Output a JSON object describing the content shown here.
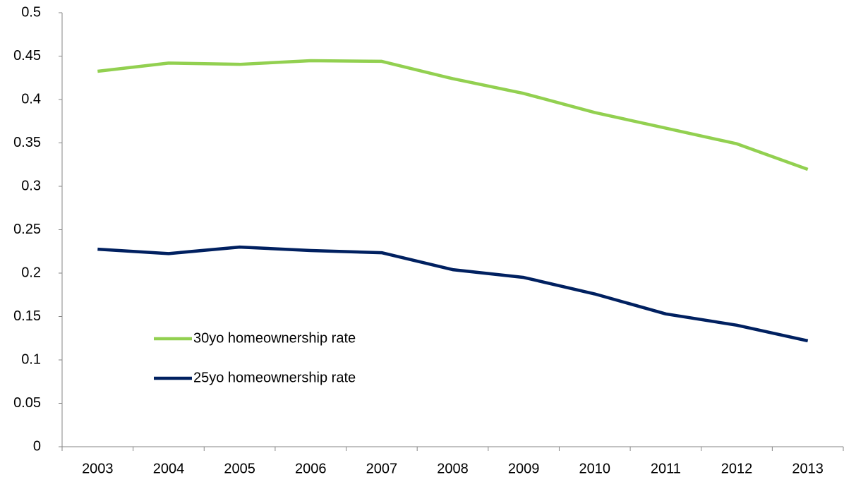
{
  "chart_data": {
    "type": "line",
    "categories": [
      "2003",
      "2004",
      "2005",
      "2006",
      "2007",
      "2008",
      "2009",
      "2010",
      "2011",
      "2012",
      "2013"
    ],
    "series": [
      {
        "name": "30yo homeownership rate",
        "color": "#92d050",
        "values": [
          0.4325,
          0.442,
          0.4405,
          0.4447,
          0.444,
          0.424,
          0.407,
          0.385,
          0.367,
          0.349,
          0.3195
        ]
      },
      {
        "name": "25yo homeownership rate",
        "color": "#002060",
        "values": [
          0.2275,
          0.2225,
          0.23,
          0.226,
          0.2235,
          0.204,
          0.195,
          0.176,
          0.153,
          0.14,
          0.122
        ]
      }
    ],
    "ylim": [
      0,
      0.5
    ],
    "yticks": [
      0,
      0.05,
      0.1,
      0.15,
      0.2,
      0.25,
      0.3,
      0.35,
      0.4,
      0.45,
      0.5
    ],
    "grid": false,
    "legend": "left"
  }
}
